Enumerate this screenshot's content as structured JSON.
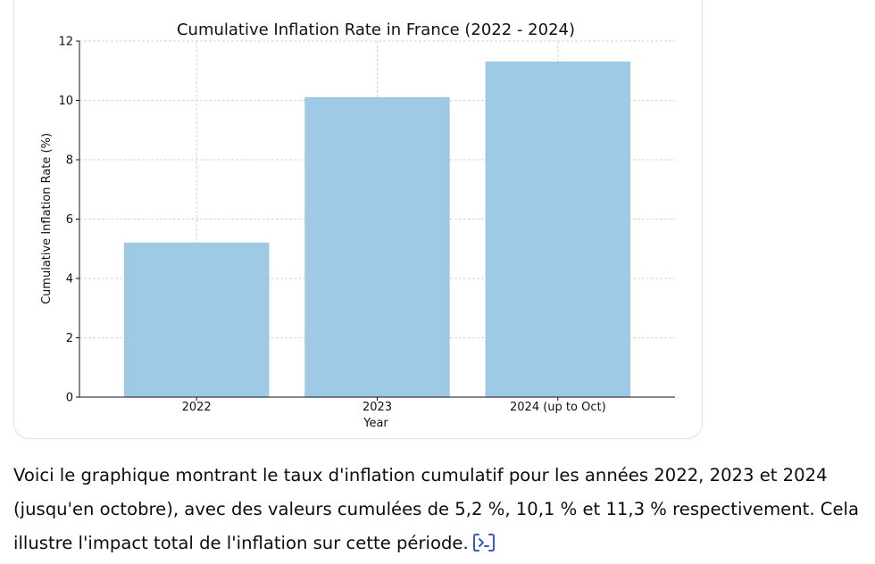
{
  "chart_data": {
    "type": "bar",
    "title": "Cumulative Inflation Rate in France (2022 - 2024)",
    "xlabel": "Year",
    "ylabel": "Cumulative Inflation Rate (%)",
    "categories": [
      "2022",
      "2023",
      "2024 (up to Oct)"
    ],
    "values": [
      5.2,
      10.1,
      11.3
    ],
    "ylim": [
      0,
      12
    ],
    "yticks": [
      0,
      2,
      4,
      6,
      8,
      10,
      12
    ],
    "grid": true,
    "bar_color": "#9ecae6"
  },
  "message": {
    "text": "Voici le graphique montrant le taux d'inflation cumulatif pour les années 2022, 2023 et 2024 (jusqu'en octobre), avec des valeurs cumulées de 5,2 %, 10,1 % et 11,3 % respectivement. Cela illustre l'impact total de l'inflation sur cette période.",
    "code_icon": "code-analysis-icon"
  },
  "colors": {
    "code_icon": "#3b5bbf",
    "grid": "#c8c8c8"
  }
}
